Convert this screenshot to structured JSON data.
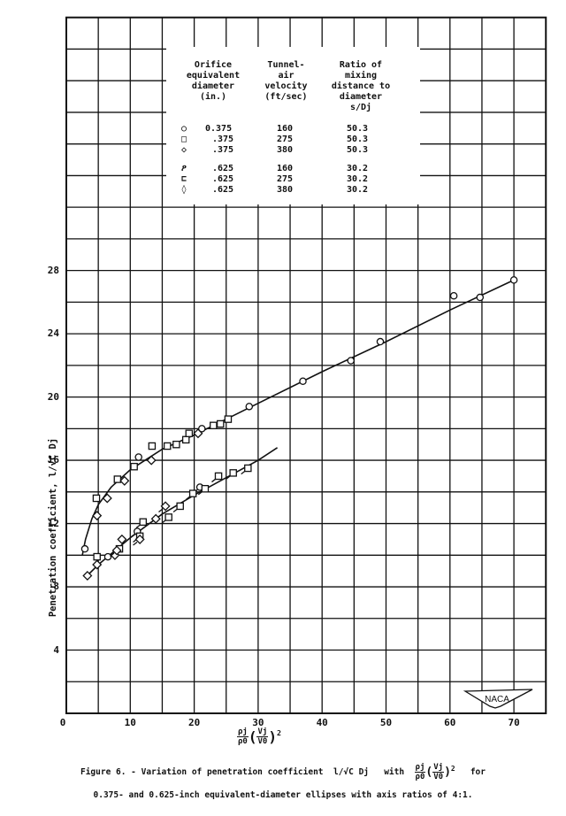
{
  "chart_data": {
    "type": "scatter",
    "title": "",
    "xlabel": "ρj/ρ0 (Vj/V0)^2",
    "ylabel": "Penetration coefficient, l/√C Dj",
    "xlim": [
      0,
      75
    ],
    "ylim": [
      0,
      44
    ],
    "x_ticks": [
      0,
      10,
      20,
      30,
      40,
      50,
      60,
      70
    ],
    "y_ticks": [
      4,
      8,
      12,
      16,
      20,
      24,
      28
    ],
    "y_zero_label": "0",
    "grid": true,
    "legend_position": "upper center",
    "series": [
      {
        "name": "0.375 in., 160 ft/sec, s/Dj 50.3",
        "marker": "circle",
        "x": [
          2.9,
          6.5,
          11.3,
          21.2,
          28.6,
          37.0,
          44.5,
          49.1,
          60.6,
          64.7,
          70.0
        ],
        "y": [
          10.4,
          9.9,
          16.2,
          18.0,
          19.4,
          21.0,
          22.3,
          23.5,
          26.4,
          26.3,
          27.4
        ]
      },
      {
        "name": ".375 in., 275 ft/sec, s/Dj 50.3",
        "marker": "square",
        "x": [
          4.7,
          8.0,
          10.6,
          13.4,
          15.8,
          17.2,
          18.7,
          19.2,
          23.0,
          24.1,
          25.3,
          4.8,
          8.3
        ],
        "y": [
          13.6,
          14.8,
          15.6,
          16.9,
          16.9,
          17.0,
          17.3,
          17.7,
          18.2,
          18.3,
          18.6,
          9.9,
          10.4
        ]
      },
      {
        "name": ".375 in., 380 ft/sec, s/Dj 50.3",
        "marker": "diamond",
        "x": [
          4.8,
          6.4,
          9.1,
          13.3,
          20.6,
          3.3,
          4.8,
          7.6,
          8.7,
          14.0
        ],
        "y": [
          12.5,
          13.6,
          14.7,
          16.0,
          17.7,
          8.7,
          9.4,
          10.0,
          11.0,
          12.3
        ]
      },
      {
        "name": ".625 in., 160 ft/sec, s/Dj 30.2",
        "marker": "circle-flag",
        "x": [
          11.1,
          20.9
        ],
        "y": [
          11.5,
          14.3
        ]
      },
      {
        "name": ".625 in., 275 ft/sec, s/Dj 30.2",
        "marker": "square-flag",
        "x": [
          11.5,
          12.0,
          16.0,
          17.8,
          19.8,
          21.7,
          23.8,
          26.1,
          28.4
        ],
        "y": [
          11.2,
          12.1,
          12.4,
          13.1,
          13.9,
          14.2,
          15.0,
          15.2,
          15.5
        ]
      },
      {
        "name": ".625 in., 380 ft/sec, s/Dj 30.2",
        "marker": "diamond-flag",
        "x": [
          7.9,
          11.5,
          15.5
        ],
        "y": [
          10.3,
          11.0,
          13.1
        ]
      }
    ],
    "fit_curves": [
      {
        "name": "s/Dj 50.3",
        "x": [
          2.5,
          3,
          4,
          5,
          7,
          10,
          15,
          20,
          30,
          40,
          50,
          60,
          70
        ],
        "y": [
          10.0,
          11.0,
          12.3,
          13.2,
          14.3,
          15.4,
          16.7,
          17.6,
          19.6,
          21.6,
          23.5,
          25.5,
          27.4
        ]
      },
      {
        "name": "s/Dj 30.2",
        "x": [
          3,
          5,
          10,
          15,
          20,
          25,
          30,
          33
        ],
        "y": [
          8.6,
          9.4,
          11.1,
          12.6,
          13.8,
          14.9,
          16.0,
          16.8
        ]
      }
    ]
  },
  "legend": {
    "headers": [
      "Orifice\nequivalent\ndiameter\n(in.)",
      "Tunnel-\nair\nvelocity\n(ft/sec)",
      "Ratio of\nmixing\ndistance to\ndiameter\ns/Dj"
    ],
    "rows": [
      {
        "symbol": "○",
        "diameter": "0.375",
        "velocity": "160",
        "ratio": "50.3"
      },
      {
        "symbol": "□",
        "diameter": ".375",
        "velocity": "275",
        "ratio": "50.3"
      },
      {
        "symbol": "◇",
        "diameter": ".375",
        "velocity": "380",
        "ratio": "50.3"
      },
      {
        "symbol": "ዖ",
        "diameter": ".625",
        "velocity": "160",
        "ratio": "30.2"
      },
      {
        "symbol": "⊏",
        "diameter": ".625",
        "velocity": "275",
        "ratio": "30.2"
      },
      {
        "symbol": "◊",
        "diameter": ".625",
        "velocity": "380",
        "ratio": "30.2"
      }
    ]
  },
  "axes": {
    "ylabel": "Penetration coefficient, l/√C Dj",
    "xlabel_num": "ρj",
    "xlabel_den": "ρ0",
    "xlabel_paren_num": "Vj",
    "xlabel_paren_den": "V0",
    "xlabel_exp": "2"
  },
  "logo": "NACA",
  "caption": {
    "line1_prefix": "Figure 6. - Variation of penetration coefficient",
    "line1_coef": "l/√C Dj",
    "line1_with": "with",
    "line1_for": "for",
    "line2": "0.375- and 0.625-inch equivalent-diameter ellipses with axis ratios of 4:1."
  }
}
